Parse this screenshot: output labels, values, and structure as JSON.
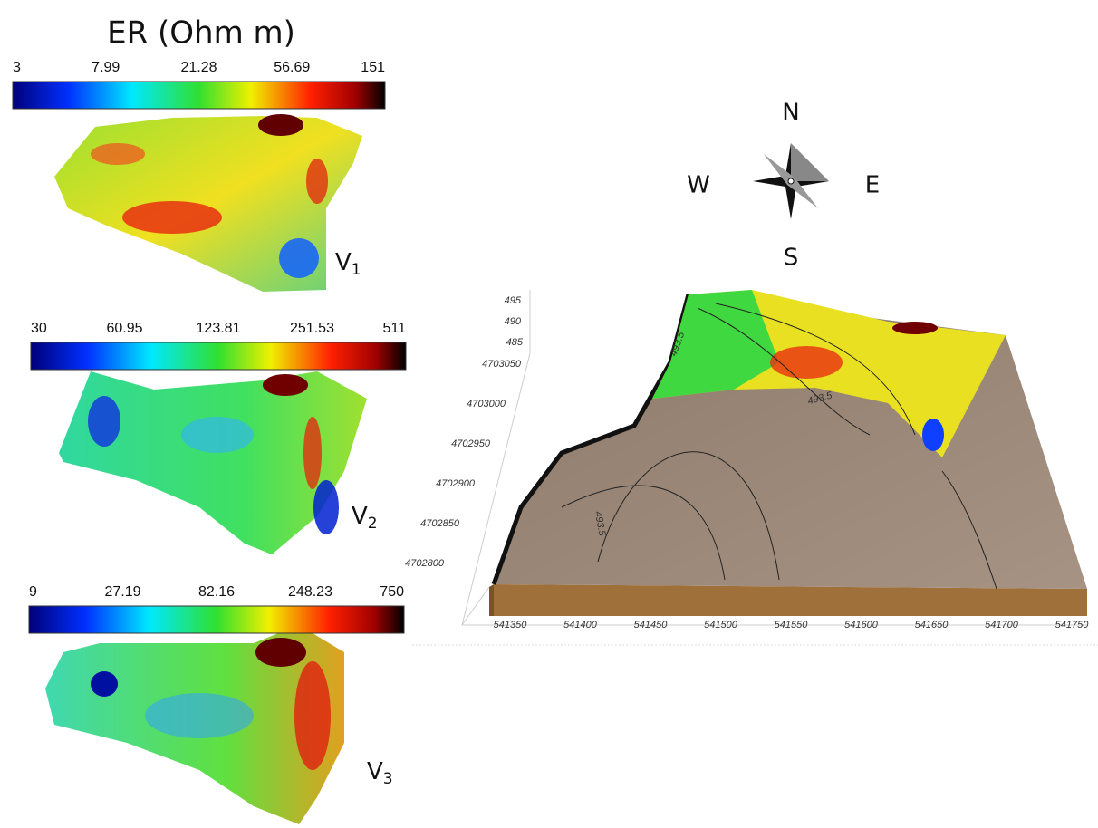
{
  "title": "ER (Ohm m)",
  "panels": [
    {
      "ticks": [
        "3",
        "7.99",
        "21.28",
        "56.69",
        "151"
      ],
      "label": "V",
      "label_sub": "1"
    },
    {
      "ticks": [
        "30",
        "60.95",
        "123.81",
        "251.53",
        "511"
      ],
      "label": "V",
      "label_sub": "2"
    },
    {
      "ticks": [
        "9",
        "27.19",
        "82.16",
        "248.23",
        "750"
      ],
      "label": "V",
      "label_sub": "3"
    }
  ],
  "compass": {
    "north": "N",
    "west": "W",
    "east": "E",
    "south": "S"
  },
  "block": {
    "z_ticks": [
      "495",
      "490",
      "485"
    ],
    "y_ticks": [
      "4703050",
      "4703000",
      "4702950",
      "4702900",
      "4702850",
      "4702800"
    ],
    "x_ticks": [
      "541350",
      "541400",
      "541450",
      "541500",
      "541550",
      "541600",
      "541650",
      "541700",
      "541750"
    ],
    "contour_labels": [
      "493.5",
      "493.5",
      "493.5"
    ]
  }
}
